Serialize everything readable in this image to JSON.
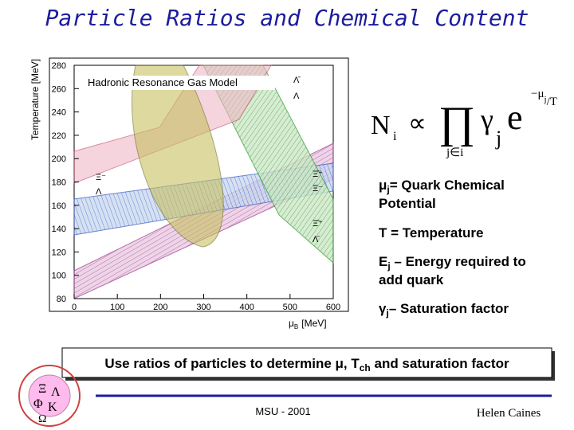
{
  "title": "Particle Ratios and Chemical Content",
  "plot": {
    "model_label": "Hadronic Resonance Gas Model",
    "y_axis_label": "Temperature [MeV]",
    "x_axis_label": {
      "symbol": "μ",
      "sub": "B",
      "unit": "[MeV]"
    },
    "xlim": [
      0,
      600
    ],
    "xticks": [
      0,
      100,
      200,
      300,
      400,
      500,
      600
    ],
    "ylim": [
      80,
      280
    ],
    "yticks": [
      80,
      100,
      120,
      140,
      160,
      180,
      200,
      220,
      240,
      260,
      280
    ],
    "ratio_labels": [
      {
        "num": "Λ̄",
        "den": "Λ"
      },
      {
        "num": "Ξ⁻",
        "den": "Λ"
      },
      {
        "num": "Ξ̄⁺",
        "den": "Ξ⁻"
      },
      {
        "num": "Ξ̄⁺",
        "den": "Λ̄"
      }
    ]
  },
  "formula": {
    "lhs": "N",
    "lhs_sub": "i",
    "relation": "∝",
    "product": "∏",
    "product_sub": "j∈i",
    "gamma": "γ",
    "gamma_sub": "j",
    "exp": "e",
    "exp_power": "−μ",
    "exp_power_sub": "j",
    "exp_power_tail": "/T"
  },
  "definitions": [
    {
      "symbol": "μ",
      "sub": "j",
      "lines": [
        "= Quark Chemical",
        "Potential"
      ]
    },
    {
      "symbol": "T",
      "sub": "",
      "lines": [
        " = Temperature"
      ]
    },
    {
      "symbol": "E",
      "sub": "j",
      "lines": [
        " – Energy required to",
        "add quark"
      ]
    },
    {
      "symbol": "γ",
      "sub": "j",
      "lines": [
        "– Saturation factor"
      ]
    }
  ],
  "banner": [
    "Use ratios of particles to determine μ, T",
    "ch",
    " and saturation factor"
  ],
  "logo": [
    "Ξ",
    "Λ",
    "Φ",
    "K",
    "Ω"
  ],
  "footer": {
    "event": "MSU - 2001",
    "author": "Helen Caines"
  }
}
